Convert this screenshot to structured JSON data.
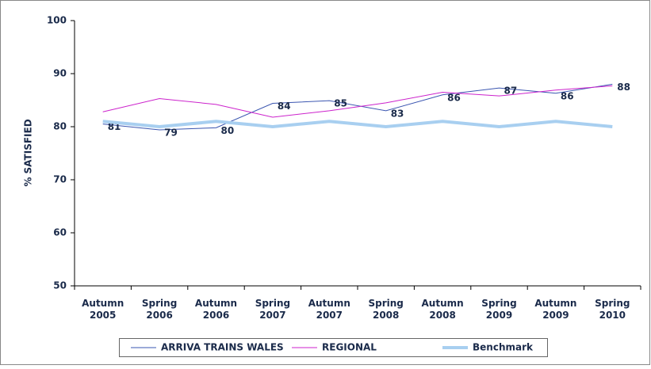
{
  "chart_data": {
    "type": "line",
    "ylabel": "% SATISFIED",
    "categories": [
      "Autumn 2005",
      "Spring 2006",
      "Autumn 2006",
      "Spring 2007",
      "Autumn 2007",
      "Spring 2008",
      "Autumn 2008",
      "Spring 2009",
      "Autumn 2009",
      "Spring 2010"
    ],
    "series": [
      {
        "name": "ARRIVA TRAINS WALES",
        "color": "#3a55b0",
        "width": 1,
        "values": [
          80.5,
          79.4,
          79.8,
          84.4,
          84.9,
          83.0,
          86.0,
          87.3,
          86.3,
          88.0
        ],
        "value_labels": [
          "81",
          "79",
          "80",
          "84",
          "85",
          "83",
          "86",
          "87",
          "86",
          "88"
        ]
      },
      {
        "name": "REGIONAL",
        "color": "#cc22cc",
        "width": 1,
        "values": [
          82.8,
          85.3,
          84.2,
          81.8,
          83.0,
          84.5,
          86.5,
          85.8,
          86.9,
          87.7
        ]
      },
      {
        "name": "Benchmark",
        "color": "#a8cff0",
        "width": 4,
        "values": [
          81,
          80,
          81,
          80,
          81,
          80,
          81,
          80,
          81,
          80
        ]
      }
    ],
    "ylim": [
      50,
      100
    ],
    "yticks": [
      50,
      60,
      70,
      80,
      90,
      100
    ],
    "grid": false
  }
}
